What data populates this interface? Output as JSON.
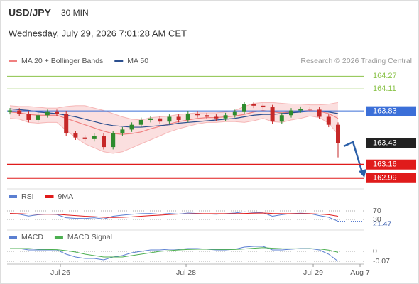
{
  "header": {
    "symbol": "USD/JPY",
    "interval": "30 MIN",
    "datetime": "Wednesday, July 29, 2026 7:01:28 AM CET",
    "credit": "Research © 2026 Trading Central"
  },
  "chart_data": [
    {
      "type": "candlestick",
      "open": [
        163.82,
        163.84,
        163.8,
        163.72,
        163.78,
        163.82,
        163.8,
        163.55,
        163.5,
        163.48,
        163.52,
        163.38,
        163.55,
        163.6,
        163.66,
        163.72,
        163.74,
        163.7,
        163.76,
        163.72,
        163.8,
        163.78,
        163.76,
        163.74,
        163.78,
        163.82,
        163.92,
        163.9,
        163.88,
        163.7,
        163.78,
        163.84,
        163.86,
        163.85,
        163.76,
        163.66
      ],
      "high": [
        163.87,
        163.87,
        163.83,
        163.81,
        163.85,
        163.85,
        163.83,
        163.58,
        163.53,
        163.55,
        163.55,
        163.58,
        163.63,
        163.69,
        163.75,
        163.77,
        163.77,
        163.79,
        163.79,
        163.83,
        163.83,
        163.81,
        163.79,
        163.81,
        163.85,
        163.95,
        163.95,
        163.93,
        163.91,
        163.81,
        163.87,
        163.89,
        163.89,
        163.88,
        163.79,
        163.69
      ],
      "low": [
        163.79,
        163.77,
        163.69,
        163.69,
        163.75,
        163.77,
        163.52,
        163.47,
        163.45,
        163.45,
        163.35,
        163.35,
        163.52,
        163.57,
        163.63,
        163.69,
        163.67,
        163.67,
        163.69,
        163.69,
        163.75,
        163.73,
        163.71,
        163.71,
        163.75,
        163.79,
        163.87,
        163.85,
        163.67,
        163.67,
        163.75,
        163.81,
        163.82,
        163.73,
        163.63,
        163.25
      ],
      "close": [
        163.84,
        163.8,
        163.72,
        163.78,
        163.82,
        163.8,
        163.55,
        163.5,
        163.48,
        163.52,
        163.38,
        163.55,
        163.6,
        163.66,
        163.72,
        163.74,
        163.7,
        163.76,
        163.72,
        163.8,
        163.78,
        163.76,
        163.74,
        163.78,
        163.82,
        163.92,
        163.9,
        163.88,
        163.7,
        163.78,
        163.84,
        163.86,
        163.85,
        163.76,
        163.66,
        163.43
      ],
      "up_color": "#2e8b2e",
      "down_color": "#c62828",
      "series": [
        {
          "name": "MA 20 + Bollinger Bands",
          "color": "#f08080",
          "values": [
            163.82,
            163.81,
            163.79,
            163.78,
            163.78,
            163.78,
            163.74,
            163.7,
            163.66,
            163.62,
            163.58,
            163.55,
            163.54,
            163.55,
            163.57,
            163.61,
            163.64,
            163.67,
            163.7,
            163.72,
            163.74,
            163.75,
            163.75,
            163.76,
            163.77,
            163.79,
            163.82,
            163.84,
            163.82,
            163.81,
            163.82,
            163.83,
            163.84,
            163.83,
            163.8,
            163.74
          ],
          "upper": [
            163.9,
            163.89,
            163.89,
            163.88,
            163.87,
            163.87,
            163.89,
            163.9,
            163.9,
            163.87,
            163.84,
            163.8,
            163.76,
            163.73,
            163.72,
            163.75,
            163.76,
            163.77,
            163.79,
            163.8,
            163.81,
            163.81,
            163.81,
            163.82,
            163.84,
            163.89,
            163.93,
            163.94,
            163.94,
            163.93,
            163.92,
            163.92,
            163.91,
            163.91,
            163.92,
            163.94
          ],
          "lower": [
            163.74,
            163.73,
            163.69,
            163.68,
            163.69,
            163.69,
            163.59,
            163.5,
            163.42,
            163.37,
            163.32,
            163.3,
            163.32,
            163.37,
            163.42,
            163.47,
            163.52,
            163.57,
            163.61,
            163.64,
            163.67,
            163.69,
            163.69,
            163.7,
            163.7,
            163.69,
            163.71,
            163.74,
            163.7,
            163.69,
            163.72,
            163.74,
            163.77,
            163.75,
            163.68,
            163.54
          ]
        },
        {
          "name": "MA 50",
          "color": "#2b4f8f",
          "values": [
            163.86,
            163.85,
            163.84,
            163.82,
            163.81,
            163.8,
            163.78,
            163.76,
            163.73,
            163.7,
            163.67,
            163.65,
            163.64,
            163.63,
            163.63,
            163.64,
            163.65,
            163.66,
            163.68,
            163.69,
            163.7,
            163.71,
            163.72,
            163.73,
            163.74,
            163.76,
            163.78,
            163.79,
            163.79,
            163.8,
            163.81,
            163.82,
            163.83,
            163.83,
            163.82,
            163.8
          ]
        }
      ],
      "levels": [
        {
          "value": 164.27,
          "color": "#8bc34a",
          "style": "plain"
        },
        {
          "value": 164.11,
          "color": "#8bc34a",
          "style": "plain"
        },
        {
          "value": 163.83,
          "color": "#3b6fd8",
          "style": "box"
        },
        {
          "value": 163.16,
          "color": "#e01b1b",
          "style": "box"
        },
        {
          "value": 162.99,
          "color": "#e01b1b",
          "style": "box"
        }
      ],
      "last_price": 163.43,
      "ylim": [
        162.89,
        164.38
      ],
      "xticks": [
        {
          "value": 5.38,
          "label": "Jul 26"
        },
        {
          "value": 18.79,
          "label": "Jul 28"
        },
        {
          "value": 32.35,
          "label": "Jul 29"
        },
        {
          "value": 37.35,
          "label": "Aug 7"
        }
      ]
    },
    {
      "type": "line",
      "series": [
        {
          "name": "RSI",
          "color": "#5b7fd1",
          "values": [
            58,
            54,
            46,
            52,
            55,
            53,
            38,
            35,
            34,
            38,
            32,
            45,
            50,
            54,
            57,
            58,
            54,
            58,
            55,
            60,
            58,
            56,
            54,
            57,
            60,
            66,
            63,
            61,
            45,
            52,
            57,
            59,
            57,
            48,
            40,
            21.47
          ]
        },
        {
          "name": "9MA",
          "color": "#e01b1b",
          "values": [
            58,
            57,
            55,
            54,
            54,
            54,
            51,
            48,
            45,
            43,
            40,
            39,
            40,
            42,
            45,
            48,
            50,
            53,
            55,
            56,
            57,
            57,
            57,
            57,
            57,
            58,
            59,
            60,
            58,
            57,
            57,
            57,
            57,
            55,
            52,
            45
          ]
        }
      ],
      "ylim": [
        0,
        100
      ],
      "yticks": [
        70,
        30
      ]
    },
    {
      "type": "line",
      "series": [
        {
          "name": "MACD",
          "color": "#5b7fd1",
          "values": [
            0.02,
            0.02,
            0.01,
            0.01,
            0.01,
            0.01,
            -0.02,
            -0.04,
            -0.05,
            -0.05,
            -0.06,
            -0.04,
            -0.03,
            -0.01,
            0,
            0.01,
            0.01,
            0.015,
            0.015,
            0.02,
            0.02,
            0.015,
            0.01,
            0.01,
            0.015,
            0.03,
            0.035,
            0.035,
            0.01,
            0.01,
            0.015,
            0.02,
            0.02,
            0.01,
            -0.02,
            -0.07
          ]
        },
        {
          "name": "MACD Signal",
          "color": "#4caf50",
          "values": [
            0.02,
            0.02,
            0.02,
            0.015,
            0.013,
            0.012,
            0.005,
            -0.005,
            -0.02,
            -0.03,
            -0.04,
            -0.04,
            -0.04,
            -0.03,
            -0.02,
            -0.01,
            0,
            0.005,
            0.01,
            0.013,
            0.015,
            0.015,
            0.014,
            0.013,
            0.013,
            0.017,
            0.022,
            0.026,
            0.022,
            0.019,
            0.018,
            0.018,
            0.019,
            0.017,
            0.009,
            -0.007
          ]
        }
      ],
      "ylim": [
        -0.09,
        0.07
      ],
      "yticks": [
        0,
        -0.07
      ]
    }
  ]
}
